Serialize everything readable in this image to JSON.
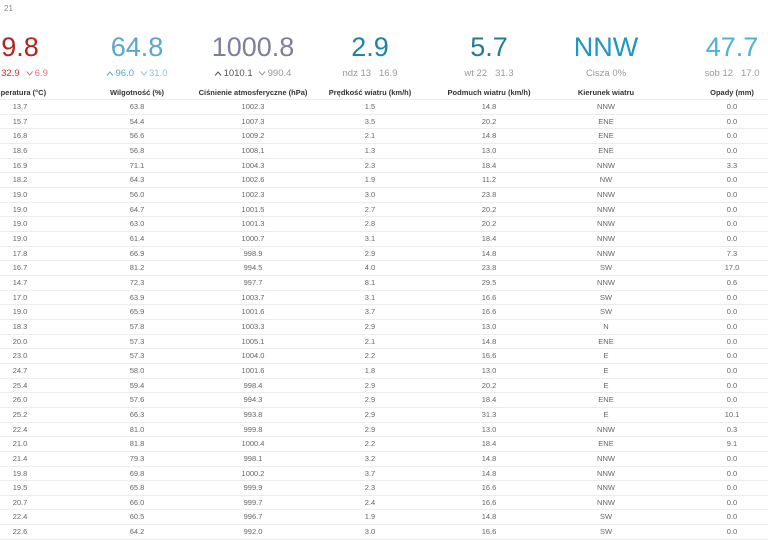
{
  "page_label": "21",
  "summary": [
    {
      "value": "9.8",
      "max": "32.9",
      "min": "6.9"
    },
    {
      "value": "64.8",
      "max": "96.0",
      "min": "31.0"
    },
    {
      "value": "1000.8",
      "max": "1010.1",
      "min": "990.4"
    },
    {
      "value": "2.9",
      "note": "ndz 13",
      "extra": "16.9"
    },
    {
      "value": "5.7",
      "note": "wt 22",
      "extra": "31.3"
    },
    {
      "value": "NNW",
      "note": "Cisza 0%"
    },
    {
      "value": "47.7",
      "note": "sob 12",
      "extra": "17.0"
    }
  ],
  "table": {
    "headers": [
      "mperatura (°C)",
      "Wilgotność (%)",
      "Ciśnienie atmosferyczne (hPa)",
      "Prędkość wiatru (km/h)",
      "Podmuch wiatru (km/h)",
      "Kierunek wiatru",
      "Opady (mm)"
    ],
    "rows": [
      [
        "13.7",
        "63.8",
        "1002.3",
        "1.5",
        "14.8",
        "NNW",
        "0.0"
      ],
      [
        "15.7",
        "54.4",
        "1007.3",
        "3.5",
        "20.2",
        "ENE",
        "0.0"
      ],
      [
        "16.8",
        "56.6",
        "1009.2",
        "2.1",
        "14.8",
        "ENE",
        "0.0"
      ],
      [
        "18.6",
        "56.8",
        "1008.1",
        "1.3",
        "13.0",
        "ENE",
        "0.0"
      ],
      [
        "16.9",
        "71.1",
        "1004.3",
        "2.3",
        "18.4",
        "NNW",
        "3.3"
      ],
      [
        "18.2",
        "64.3",
        "1002.6",
        "1.9",
        "11.2",
        "NW",
        "0.0"
      ],
      [
        "19.0",
        "56.0",
        "1002.3",
        "3.0",
        "23.8",
        "NNW",
        "0.0"
      ],
      [
        "19.0",
        "64.7",
        "1001.5",
        "2.7",
        "20.2",
        "NNW",
        "0.0"
      ],
      [
        "19.0",
        "63.0",
        "1001.3",
        "2.8",
        "20.2",
        "NNW",
        "0.0"
      ],
      [
        "19.0",
        "61.4",
        "1000.7",
        "3.1",
        "18.4",
        "NNW",
        "0.0"
      ],
      [
        "17.8",
        "66.9",
        "998.9",
        "2.9",
        "14.8",
        "NNW",
        "7.3"
      ],
      [
        "16.7",
        "81.2",
        "994.5",
        "4.0",
        "23.8",
        "SW",
        "17.0"
      ],
      [
        "14.7",
        "72.3",
        "997.7",
        "8.1",
        "29.5",
        "NNW",
        "0.6"
      ],
      [
        "17.0",
        "63.9",
        "1003.7",
        "3.1",
        "16.6",
        "SW",
        "0.0"
      ],
      [
        "19.0",
        "65.9",
        "1001.6",
        "3.7",
        "16.6",
        "SW",
        "0.0"
      ],
      [
        "18.3",
        "57.8",
        "1003.3",
        "2.9",
        "13.0",
        "N",
        "0.0"
      ],
      [
        "20.0",
        "57.3",
        "1005.1",
        "2.1",
        "14.8",
        "ENE",
        "0.0"
      ],
      [
        "23.0",
        "57.3",
        "1004.0",
        "2.2",
        "16.6",
        "E",
        "0.0"
      ],
      [
        "24.7",
        "58.0",
        "1001.6",
        "1.8",
        "13.0",
        "E",
        "0.0"
      ],
      [
        "25.4",
        "59.4",
        "998.4",
        "2.9",
        "20.2",
        "E",
        "0.0"
      ],
      [
        "26.0",
        "57.6",
        "994.3",
        "2.9",
        "18.4",
        "ENE",
        "0.0"
      ],
      [
        "25.2",
        "66.3",
        "993.8",
        "2.9",
        "31.3",
        "E",
        "10.1"
      ],
      [
        "22.4",
        "81.0",
        "999.8",
        "2.9",
        "13.0",
        "NNW",
        "0.3"
      ],
      [
        "21.0",
        "81.8",
        "1000.4",
        "2.2",
        "18.4",
        "ENE",
        "9.1"
      ],
      [
        "21.4",
        "79.3",
        "998.1",
        "3.2",
        "14.8",
        "NNW",
        "0.0"
      ],
      [
        "19.8",
        "69.8",
        "1000.2",
        "3.7",
        "14.8",
        "NNW",
        "0.0"
      ],
      [
        "19.5",
        "65.8",
        "999.9",
        "2.3",
        "16.6",
        "NNW",
        "0.0"
      ],
      [
        "20.7",
        "66.0",
        "999.7",
        "2.4",
        "16.6",
        "NNW",
        "0.0"
      ],
      [
        "22.4",
        "60.5",
        "996.7",
        "1.9",
        "14.8",
        "SW",
        "0.0"
      ],
      [
        "22.6",
        "64.2",
        "992.0",
        "3.0",
        "16.6",
        "SW",
        "0.0"
      ]
    ]
  }
}
